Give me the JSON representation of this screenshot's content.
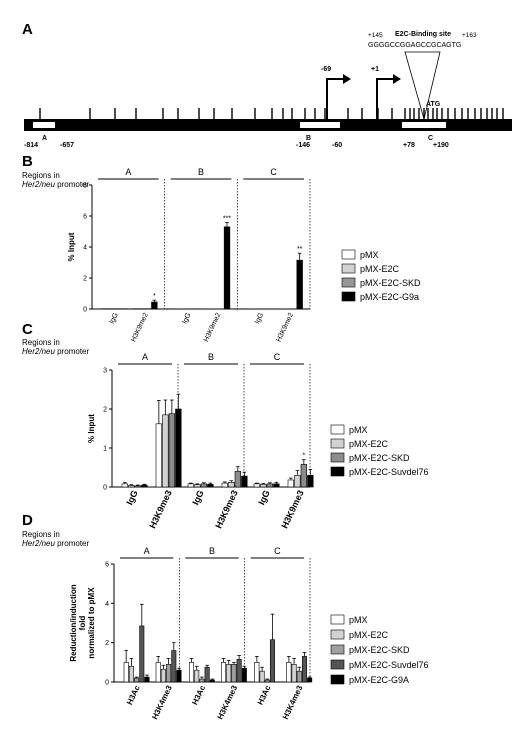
{
  "panel_letters": {
    "a": "A",
    "b": "B",
    "c": "C",
    "d": "D"
  },
  "promoter": {
    "binding_site_title": "E2C-Binding site",
    "binding_site_start": "+145",
    "binding_site_end": "+163",
    "binding_sequence": "GGGGCCGGAGCCGCAGTG",
    "tss_labels": [
      "-69",
      "+1"
    ],
    "atg": "ATG",
    "region_letters": [
      "A",
      "B",
      "C"
    ],
    "region_coords": [
      "-814",
      "-657",
      "-146",
      "-60",
      "+78",
      "+190"
    ]
  },
  "regions_caption_line1": "Regions in",
  "regions_caption_gene": "Her2/neu",
  "regions_caption_rest": " promoter",
  "chart_data": [
    {
      "type": "bar",
      "panel": "B",
      "ylabel": "% Input",
      "ylim": [
        0,
        8
      ],
      "yticks": [
        "0",
        "2",
        "4",
        "6",
        "8"
      ],
      "groups": [
        "A",
        "B",
        "C"
      ],
      "categories": [
        "IgG",
        "H3K9me2"
      ],
      "series": [
        {
          "name": "pMX",
          "values": [
            [
              0.02,
              0.02
            ],
            [
              0.01,
              0.01
            ],
            [
              0.01,
              0.01
            ]
          ]
        },
        {
          "name": "pMX-E2C",
          "values": [
            [
              0.02,
              0.02
            ],
            [
              0.01,
              0.01
            ],
            [
              0.01,
              0.01
            ]
          ]
        },
        {
          "name": "pMX-E2C-SKD",
          "values": [
            [
              0.02,
              0.02
            ],
            [
              0.01,
              0.01
            ],
            [
              0.01,
              0.01
            ]
          ]
        },
        {
          "name": "pMX-E2C-G9a",
          "values": [
            [
              0.02,
              0.45
            ],
            [
              0.01,
              5.3
            ],
            [
              0.01,
              3.15
            ]
          ]
        }
      ],
      "errors": [
        [
          [
            0,
            0
          ],
          [
            0,
            0
          ],
          [
            0,
            0
          ]
        ],
        [
          [
            0,
            0
          ],
          [
            0,
            0
          ],
          [
            0,
            0
          ]
        ],
        [
          [
            0,
            0
          ],
          [
            0,
            0
          ],
          [
            0,
            0
          ]
        ],
        [
          [
            0,
            0.12
          ],
          [
            0,
            0.28
          ],
          [
            0,
            0.45
          ]
        ]
      ],
      "annotations": [
        "*",
        "***",
        "**"
      ]
    },
    {
      "type": "bar",
      "panel": "C",
      "ylabel": "% Input",
      "ylim": [
        0,
        3
      ],
      "yticks": [
        "0",
        "1",
        "2",
        "3"
      ],
      "groups": [
        "A",
        "B",
        "C"
      ],
      "categories": [
        "IgG",
        "H3K9me3"
      ],
      "series": [
        {
          "name": "pMX",
          "values": [
            [
              0.08,
              1.62
            ],
            [
              0.08,
              0.1
            ],
            [
              0.08,
              0.18
            ]
          ]
        },
        {
          "name": "pMX-E2C",
          "values": [
            [
              0.04,
              1.85
            ],
            [
              0.06,
              0.12
            ],
            [
              0.07,
              0.3
            ]
          ]
        },
        {
          "name": "pMX-E2C-SKD",
          "values": [
            [
              0.03,
              1.88
            ],
            [
              0.08,
              0.4
            ],
            [
              0.08,
              0.58
            ]
          ]
        },
        {
          "name": "pMX-E2C-Suvdel76",
          "values": [
            [
              0.05,
              2.0
            ],
            [
              0.07,
              0.28
            ],
            [
              0.08,
              0.3
            ]
          ]
        }
      ],
      "errors": [
        [
          [
            0.04,
            0.6
          ],
          [
            0.02,
            0.03
          ],
          [
            0.02,
            0.05
          ]
        ],
        [
          [
            0.02,
            0.38
          ],
          [
            0.02,
            0.04
          ],
          [
            0.02,
            0.12
          ]
        ],
        [
          [
            0.02,
            0.35
          ],
          [
            0.03,
            0.12
          ],
          [
            0.03,
            0.12
          ]
        ],
        [
          [
            0.02,
            0.38
          ],
          [
            0.03,
            0.1
          ],
          [
            0.04,
            0.15
          ]
        ]
      ],
      "annotations": [
        "*"
      ]
    },
    {
      "type": "bar",
      "panel": "D",
      "ylabel_lines": [
        "Reduction/induction",
        "fold",
        "normalized to pMX"
      ],
      "ylim": [
        0,
        6
      ],
      "yticks": [
        "0",
        "2",
        "4",
        "6"
      ],
      "groups": [
        "A",
        "B",
        "C"
      ],
      "categories": [
        "H3Ac",
        "H3K4me3"
      ],
      "series": [
        {
          "name": "pMX",
          "values": [
            [
              1.0,
              1.0
            ],
            [
              1.0,
              1.0
            ],
            [
              1.0,
              1.0
            ]
          ]
        },
        {
          "name": "pMX-E2C",
          "values": [
            [
              0.8,
              0.65
            ],
            [
              0.6,
              0.9
            ],
            [
              0.55,
              0.9
            ]
          ]
        },
        {
          "name": "pMX-E2C-SKD",
          "values": [
            [
              0.2,
              0.9
            ],
            [
              0.15,
              0.9
            ],
            [
              0.1,
              0.55
            ]
          ]
        },
        {
          "name": "pMX-E2C-Suvdel76",
          "values": [
            [
              2.85,
              1.6
            ],
            [
              0.75,
              1.15
            ],
            [
              2.15,
              1.3
            ]
          ]
        },
        {
          "name": "pMX-E2C-G9A",
          "values": [
            [
              0.25,
              0.6
            ],
            [
              0.1,
              0.7
            ],
            [
              0.0,
              0.2
            ]
          ]
        }
      ],
      "errors": [
        [
          [
            0.6,
            0.3
          ],
          [
            0.2,
            0.2
          ],
          [
            0.3,
            0.3
          ]
        ],
        [
          [
            0.4,
            0.2
          ],
          [
            0.2,
            0.2
          ],
          [
            0.2,
            0.3
          ]
        ],
        [
          [
            0.05,
            0.3
          ],
          [
            0.1,
            0.1
          ],
          [
            0.05,
            0.2
          ]
        ],
        [
          [
            1.1,
            0.4
          ],
          [
            0.1,
            0.2
          ],
          [
            1.3,
            0.2
          ]
        ],
        [
          [
            0.1,
            0.1
          ],
          [
            0.05,
            0.1
          ],
          [
            0.0,
            0.05
          ]
        ]
      ],
      "annotations": []
    }
  ],
  "colors": {
    "B": [
      "#ffffff",
      "#d2d2d2",
      "#969696",
      "#000000"
    ],
    "C": [
      "#ffffff",
      "#d2d2d2",
      "#8c8c8c",
      "#000000"
    ],
    "D": [
      "#ffffff",
      "#d2d2d2",
      "#a0a0a0",
      "#555555",
      "#000000"
    ]
  }
}
